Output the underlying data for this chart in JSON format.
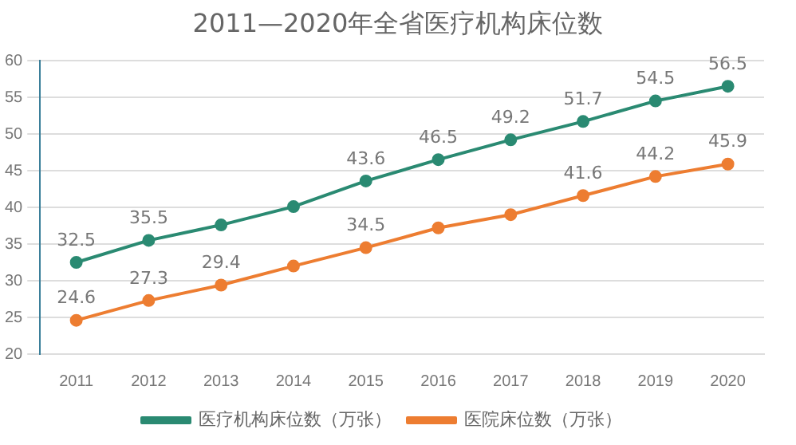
{
  "chart_data": {
    "type": "line",
    "title": "2011—2020年全省医疗机构床位数",
    "categories": [
      "2011",
      "2012",
      "2013",
      "2014",
      "2015",
      "2016",
      "2017",
      "2018",
      "2019",
      "2020"
    ],
    "series": [
      {
        "name": "医疗机构床位数（万张）",
        "color": "#2a8a72",
        "values": [
          32.5,
          35.5,
          37.6,
          40.1,
          43.6,
          46.5,
          49.2,
          51.7,
          54.5,
          56.5
        ],
        "value_labels": [
          "32.5",
          "35.5",
          null,
          null,
          "43.6",
          "46.5",
          "49.2",
          "51.7",
          "54.5",
          "56.5"
        ]
      },
      {
        "name": "医院床位数（万张）",
        "color": "#ed7d31",
        "values": [
          24.6,
          27.3,
          29.4,
          32.0,
          34.5,
          37.2,
          39.0,
          41.6,
          44.2,
          45.9
        ],
        "value_labels": [
          "24.6",
          "27.3",
          "29.4",
          null,
          "34.5",
          null,
          null,
          "41.6",
          "44.2",
          "45.9"
        ]
      }
    ],
    "ylim": [
      20,
      60
    ],
    "yticks": [
      20,
      25,
      30,
      35,
      40,
      45,
      50,
      55,
      60
    ],
    "grid": "y",
    "legend": "bottom",
    "marker": "circle",
    "line_style": "solid"
  }
}
